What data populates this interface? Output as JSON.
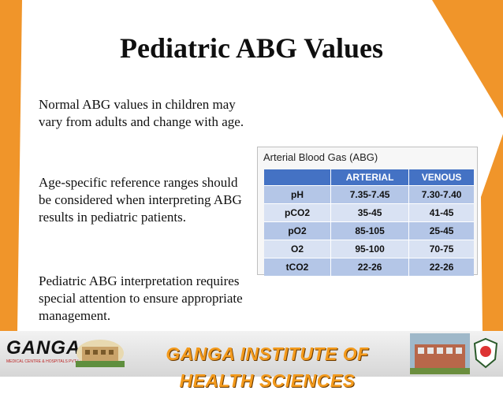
{
  "slide": {
    "title": "Pediatric ABG Values",
    "paragraphs": [
      "Normal ABG values in children may vary from adults and change with age.",
      "Age-specific reference ranges should be considered when interpreting ABG results in pediatric patients.",
      "Pediatric ABG interpretation requires special attention to ensure appropriate management."
    ]
  },
  "abg_card": {
    "title": "Arterial Blood Gas (ABG)",
    "headers": [
      "",
      "ARTERIAL",
      "VENOUS"
    ],
    "rows": [
      [
        "pH",
        "7.35-7.45",
        "7.30-7.40"
      ],
      [
        "pCO2",
        "35-45",
        "41-45"
      ],
      [
        "pO2",
        "85-105",
        "25-45"
      ],
      [
        "O2",
        "95-100",
        "70-75"
      ],
      [
        "tCO2",
        "22-26",
        "22-26"
      ]
    ]
  },
  "footer": {
    "logo_text": "GANGA",
    "logo_subtext": "MEDICAL CENTRE & HOSPITALS PVT LTD",
    "banner_text": "GANGA INSTITUTE OF HEALTH SCIENCES"
  },
  "colors": {
    "orange_frame": "#f0952a",
    "table_header": "#4472c4",
    "banner_text": "#f39a1c"
  }
}
